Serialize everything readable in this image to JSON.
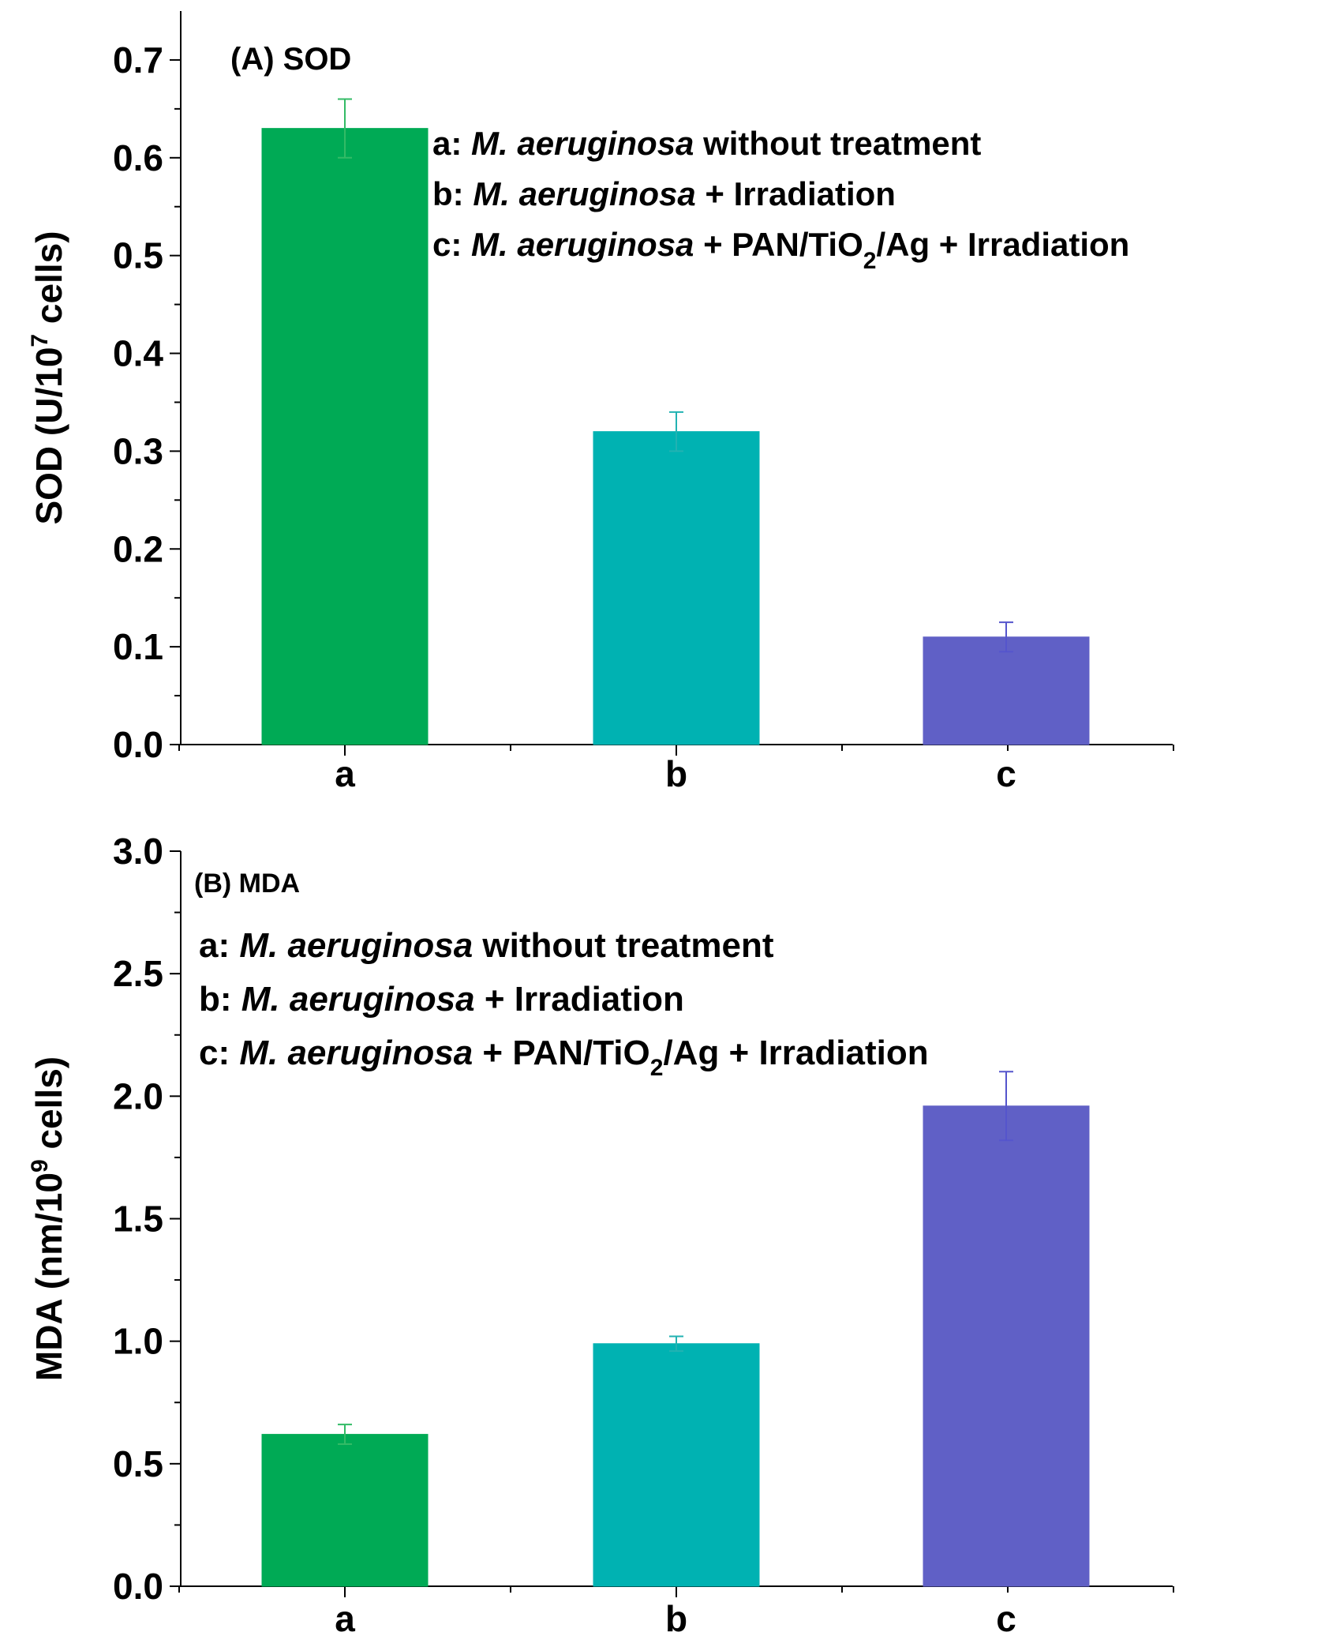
{
  "chart_data": [
    {
      "type": "bar",
      "panel": "A",
      "title": "(A) SOD",
      "ylabel": {
        "prefix": "SOD (U/10",
        "sup": "7",
        "suffix": " cells)"
      },
      "xlabel": "",
      "categories": [
        "a",
        "b",
        "c"
      ],
      "values": [
        0.63,
        0.32,
        0.11
      ],
      "errors": [
        0.03,
        0.02,
        0.015
      ],
      "colors": [
        "#00aa55",
        "#00b2b2",
        "#6060c6"
      ],
      "error_colors": [
        "#33bb66",
        "#22b2b2",
        "#5555cc"
      ],
      "ylim": [
        0,
        0.75
      ],
      "yticks": [
        "0.0",
        "0.1",
        "0.2",
        "0.3",
        "0.4",
        "0.5",
        "0.6",
        "0.7"
      ],
      "legend": [
        {
          "key": "a:",
          "species": "M. aeruginosa",
          "rest": "  without treatment"
        },
        {
          "key": "b:",
          "species": "M. aeruginosa",
          "rest": " + Irradiation"
        },
        {
          "key": "c:",
          "species": "M. aeruginosa",
          "rest_pre": " + PAN/TiO",
          "sub": "2",
          "rest_post": "/Ag + Irradiation"
        }
      ]
    },
    {
      "type": "bar",
      "panel": "B",
      "title": "(B) MDA",
      "ylabel": {
        "prefix": "MDA (nm/10",
        "sup": "9",
        "suffix": " cells)"
      },
      "xlabel": "",
      "categories": [
        "a",
        "b",
        "c"
      ],
      "values": [
        0.62,
        0.99,
        1.96
      ],
      "errors": [
        0.04,
        0.03,
        0.14
      ],
      "colors": [
        "#00aa55",
        "#00b2b2",
        "#6060c6"
      ],
      "error_colors": [
        "#33bb66",
        "#22b2b2",
        "#5555cc"
      ],
      "ylim": [
        0,
        3.0
      ],
      "yticks": [
        "0.0",
        "0.5",
        "1.0",
        "1.5",
        "2.0",
        "2.5",
        "3.0"
      ],
      "legend": [
        {
          "key": "a:",
          "species": "M. aeruginosa",
          "rest": "  without treatment"
        },
        {
          "key": "b:",
          "species": "M. aeruginosa",
          "rest": " + Irradiation"
        },
        {
          "key": "c:",
          "species": "M. aeruginosa",
          "rest_pre": " + PAN/TiO",
          "sub": "2",
          "rest_post": "/Ag + Irradiation"
        }
      ]
    }
  ]
}
